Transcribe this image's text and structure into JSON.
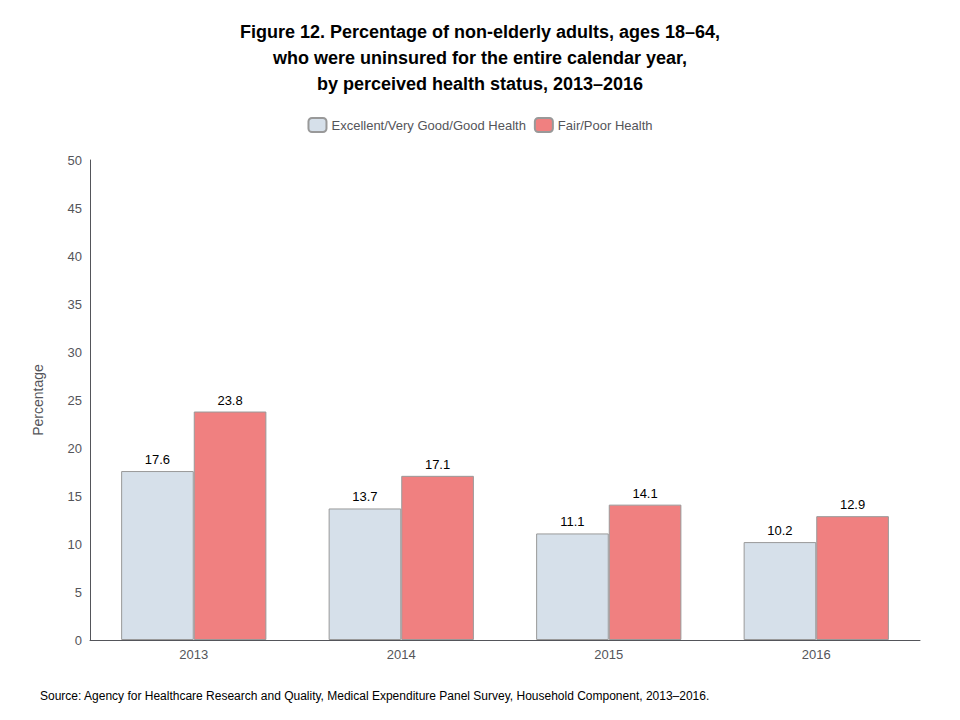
{
  "chart_data": {
    "type": "bar",
    "title": "Figure 12. Percentage of non-elderly adults, ages 18–64,\nwho were uninsured for the entire calendar year,\nby perceived health status, 2013–2016",
    "categories": [
      "2013",
      "2014",
      "2015",
      "2016"
    ],
    "series": [
      {
        "name": "Excellent/Very Good/Good Health",
        "color": "#d6e0ea",
        "values": [
          17.6,
          13.7,
          11.1,
          10.2
        ]
      },
      {
        "name": "Fair/Poor Health",
        "color": "#f08080",
        "values": [
          23.8,
          17.1,
          14.1,
          12.9
        ]
      }
    ],
    "ylabel": "Percentage",
    "ylim": [
      0,
      50
    ],
    "yticks": [
      0,
      5,
      10,
      15,
      20,
      25,
      30,
      35,
      40,
      45,
      50
    ],
    "grid": false,
    "legend": "top",
    "data_labels": true,
    "annotations": [
      "Source: Agency for Healthcare Research and Quality, Medical Expenditure Panel Survey, Household Component, 2013–2016."
    ]
  }
}
